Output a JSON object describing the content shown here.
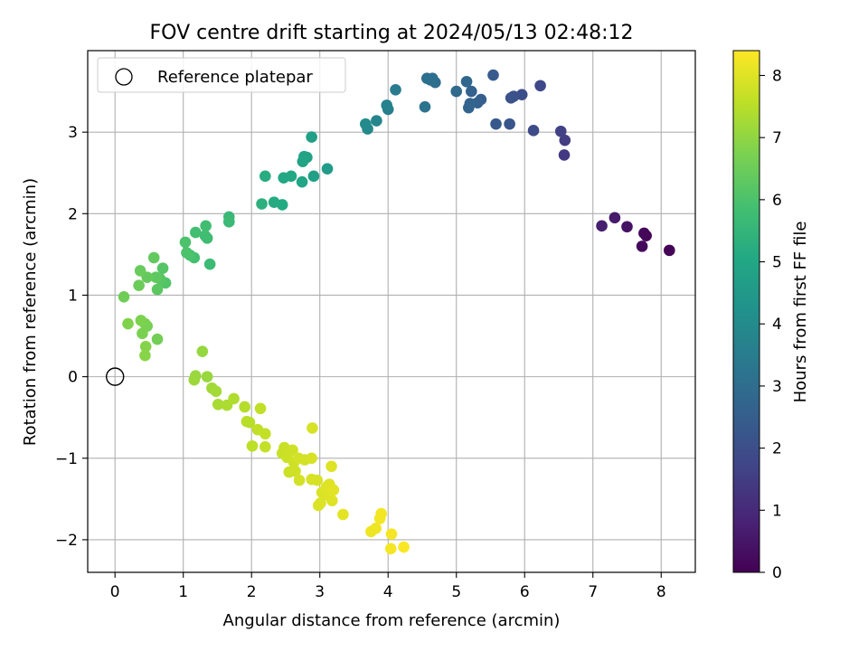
{
  "chart_data": {
    "type": "scatter",
    "title": "FOV centre drift starting at 2024/05/13 02:48:12",
    "xlabel": "Angular distance from reference (arcmin)",
    "ylabel": "Rotation from reference (arcmin)",
    "xlim": [
      -0.4,
      8.5
    ],
    "ylim": [
      -2.4,
      4.0
    ],
    "xticks": [
      0,
      1,
      2,
      3,
      4,
      5,
      6,
      7,
      8
    ],
    "yticks": [
      -2,
      -1,
      0,
      1,
      2,
      3
    ],
    "xtick_labels": [
      "0",
      "1",
      "2",
      "3",
      "4",
      "5",
      "6",
      "7",
      "8"
    ],
    "ytick_labels": [
      "−2",
      "−1",
      "0",
      "1",
      "2",
      "3"
    ],
    "grid": true,
    "legend": {
      "placement": "top-left",
      "entries": [
        "Reference platepar"
      ]
    },
    "reference_point": {
      "x": 0,
      "y": 0
    },
    "colorbar": {
      "label": "Hours from first FF file",
      "colormap": "viridis",
      "range": [
        0,
        8.4
      ],
      "ticks": [
        0,
        1,
        2,
        3,
        4,
        5,
        6,
        7,
        8
      ],
      "tick_labels": [
        "0",
        "1",
        "2",
        "3",
        "4",
        "5",
        "6",
        "7",
        "8"
      ]
    },
    "colormap_stops": [
      "#440154",
      "#482475",
      "#414487",
      "#355f8d",
      "#2a788e",
      "#21918c",
      "#22a884",
      "#44bf70",
      "#7ad151",
      "#bddf26",
      "#fde725"
    ],
    "points": [
      {
        "x": 8.12,
        "y": 1.55,
        "t": 0.05
      },
      {
        "x": 7.78,
        "y": 1.73,
        "t": 0.1
      },
      {
        "x": 7.75,
        "y": 1.76,
        "t": 0.15
      },
      {
        "x": 7.72,
        "y": 1.6,
        "t": 0.2
      },
      {
        "x": 7.5,
        "y": 1.84,
        "t": 0.4
      },
      {
        "x": 7.32,
        "y": 1.95,
        "t": 0.6
      },
      {
        "x": 7.13,
        "y": 1.85,
        "t": 0.7
      },
      {
        "x": 6.58,
        "y": 2.72,
        "t": 1.4
      },
      {
        "x": 6.59,
        "y": 2.9,
        "t": 1.5
      },
      {
        "x": 6.53,
        "y": 3.01,
        "t": 1.6
      },
      {
        "x": 6.23,
        "y": 3.57,
        "t": 1.8
      },
      {
        "x": 6.13,
        "y": 3.02,
        "t": 1.9
      },
      {
        "x": 5.96,
        "y": 3.46,
        "t": 2.0
      },
      {
        "x": 5.84,
        "y": 3.44,
        "t": 2.1
      },
      {
        "x": 5.8,
        "y": 3.42,
        "t": 2.1
      },
      {
        "x": 5.78,
        "y": 3.1,
        "t": 2.2
      },
      {
        "x": 5.58,
        "y": 3.1,
        "t": 2.3
      },
      {
        "x": 5.54,
        "y": 3.7,
        "t": 2.4
      },
      {
        "x": 5.36,
        "y": 3.4,
        "t": 2.5
      },
      {
        "x": 5.31,
        "y": 3.36,
        "t": 2.6
      },
      {
        "x": 5.22,
        "y": 3.5,
        "t": 2.6
      },
      {
        "x": 5.2,
        "y": 3.35,
        "t": 2.7
      },
      {
        "x": 5.18,
        "y": 3.3,
        "t": 2.7
      },
      {
        "x": 5.15,
        "y": 3.62,
        "t": 2.8
      },
      {
        "x": 5.0,
        "y": 3.5,
        "t": 2.9
      },
      {
        "x": 4.69,
        "y": 3.61,
        "t": 3.0
      },
      {
        "x": 4.65,
        "y": 3.66,
        "t": 3.05
      },
      {
        "x": 4.62,
        "y": 3.64,
        "t": 3.1
      },
      {
        "x": 4.57,
        "y": 3.66,
        "t": 3.1
      },
      {
        "x": 4.54,
        "y": 3.31,
        "t": 3.2
      },
      {
        "x": 4.11,
        "y": 3.52,
        "t": 3.5
      },
      {
        "x": 4.0,
        "y": 3.28,
        "t": 3.6
      },
      {
        "x": 3.98,
        "y": 3.33,
        "t": 3.7
      },
      {
        "x": 3.83,
        "y": 3.14,
        "t": 3.8
      },
      {
        "x": 3.7,
        "y": 3.04,
        "t": 3.9
      },
      {
        "x": 3.67,
        "y": 3.1,
        "t": 4.0
      },
      {
        "x": 3.11,
        "y": 2.55,
        "t": 4.6
      },
      {
        "x": 2.91,
        "y": 2.46,
        "t": 4.7
      },
      {
        "x": 2.88,
        "y": 2.94,
        "t": 4.75
      },
      {
        "x": 2.81,
        "y": 2.69,
        "t": 4.8
      },
      {
        "x": 2.77,
        "y": 2.7,
        "t": 4.85
      },
      {
        "x": 2.75,
        "y": 2.64,
        "t": 4.9
      },
      {
        "x": 2.74,
        "y": 2.39,
        "t": 4.95
      },
      {
        "x": 2.58,
        "y": 2.46,
        "t": 5.0
      },
      {
        "x": 2.47,
        "y": 2.44,
        "t": 5.05
      },
      {
        "x": 2.45,
        "y": 2.11,
        "t": 5.1
      },
      {
        "x": 2.33,
        "y": 2.14,
        "t": 5.15
      },
      {
        "x": 2.2,
        "y": 2.46,
        "t": 5.2
      },
      {
        "x": 2.15,
        "y": 2.12,
        "t": 5.3
      },
      {
        "x": 1.67,
        "y": 1.96,
        "t": 5.6
      },
      {
        "x": 1.67,
        "y": 1.9,
        "t": 5.65
      },
      {
        "x": 1.39,
        "y": 1.38,
        "t": 5.7
      },
      {
        "x": 1.35,
        "y": 1.7,
        "t": 5.75
      },
      {
        "x": 1.33,
        "y": 1.85,
        "t": 5.8
      },
      {
        "x": 1.32,
        "y": 1.73,
        "t": 5.8
      },
      {
        "x": 1.18,
        "y": 1.77,
        "t": 5.85
      },
      {
        "x": 1.16,
        "y": 1.46,
        "t": 5.9
      },
      {
        "x": 1.1,
        "y": 1.49,
        "t": 5.95
      },
      {
        "x": 1.05,
        "y": 1.52,
        "t": 6.0
      },
      {
        "x": 1.03,
        "y": 1.65,
        "t": 6.0
      },
      {
        "x": 0.74,
        "y": 1.15,
        "t": 6.1
      },
      {
        "x": 0.7,
        "y": 1.33,
        "t": 6.15
      },
      {
        "x": 0.66,
        "y": 1.2,
        "t": 6.2
      },
      {
        "x": 0.62,
        "y": 1.07,
        "t": 6.25
      },
      {
        "x": 0.6,
        "y": 1.22,
        "t": 6.3
      },
      {
        "x": 0.57,
        "y": 1.46,
        "t": 6.35
      },
      {
        "x": 0.47,
        "y": 1.22,
        "t": 6.4
      },
      {
        "x": 0.37,
        "y": 1.3,
        "t": 6.45
      },
      {
        "x": 0.35,
        "y": 1.12,
        "t": 6.5
      },
      {
        "x": 0.13,
        "y": 0.98,
        "t": 6.55
      },
      {
        "x": 0.62,
        "y": 0.46,
        "t": 6.6
      },
      {
        "x": 0.47,
        "y": 0.62,
        "t": 6.65
      },
      {
        "x": 0.44,
        "y": 0.65,
        "t": 6.7
      },
      {
        "x": 0.4,
        "y": 0.53,
        "t": 6.7
      },
      {
        "x": 0.38,
        "y": 0.69,
        "t": 6.75
      },
      {
        "x": 0.19,
        "y": 0.65,
        "t": 6.8
      },
      {
        "x": 0.45,
        "y": 0.37,
        "t": 6.85
      },
      {
        "x": 0.44,
        "y": 0.26,
        "t": 6.9
      },
      {
        "x": 1.28,
        "y": 0.31,
        "t": 7.05
      },
      {
        "x": 1.35,
        "y": 0.0,
        "t": 7.1
      },
      {
        "x": 1.18,
        "y": 0.01,
        "t": 7.1
      },
      {
        "x": 1.16,
        "y": -0.04,
        "t": 7.15
      },
      {
        "x": 1.42,
        "y": -0.14,
        "t": 7.2
      },
      {
        "x": 1.48,
        "y": -0.18,
        "t": 7.25
      },
      {
        "x": 1.51,
        "y": -0.34,
        "t": 7.3
      },
      {
        "x": 1.64,
        "y": -0.35,
        "t": 7.35
      },
      {
        "x": 1.74,
        "y": -0.27,
        "t": 7.4
      },
      {
        "x": 1.9,
        "y": -0.37,
        "t": 7.45
      },
      {
        "x": 1.93,
        "y": -0.55,
        "t": 7.5
      },
      {
        "x": 1.97,
        "y": -0.56,
        "t": 7.5
      },
      {
        "x": 2.01,
        "y": -0.85,
        "t": 7.55
      },
      {
        "x": 2.09,
        "y": -0.65,
        "t": 7.6
      },
      {
        "x": 2.13,
        "y": -0.39,
        "t": 7.6
      },
      {
        "x": 2.2,
        "y": -0.7,
        "t": 7.65
      },
      {
        "x": 2.2,
        "y": -0.86,
        "t": 7.65
      },
      {
        "x": 2.45,
        "y": -0.94,
        "t": 7.7
      },
      {
        "x": 2.48,
        "y": -0.87,
        "t": 7.7
      },
      {
        "x": 2.52,
        "y": -0.99,
        "t": 7.75
      },
      {
        "x": 2.55,
        "y": -1.17,
        "t": 7.75
      },
      {
        "x": 2.6,
        "y": -0.9,
        "t": 7.8
      },
      {
        "x": 2.62,
        "y": -1.05,
        "t": 7.8
      },
      {
        "x": 2.64,
        "y": -1.16,
        "t": 7.8
      },
      {
        "x": 2.69,
        "y": -1.0,
        "t": 7.85
      },
      {
        "x": 2.7,
        "y": -1.27,
        "t": 7.85
      },
      {
        "x": 2.78,
        "y": -1.02,
        "t": 7.85
      },
      {
        "x": 2.88,
        "y": -1.0,
        "t": 7.9
      },
      {
        "x": 2.88,
        "y": -1.26,
        "t": 7.9
      },
      {
        "x": 2.89,
        "y": -0.63,
        "t": 7.9
      },
      {
        "x": 2.96,
        "y": -1.27,
        "t": 7.9
      },
      {
        "x": 2.98,
        "y": -1.58,
        "t": 7.95
      },
      {
        "x": 3.01,
        "y": -1.55,
        "t": 7.95
      },
      {
        "x": 3.03,
        "y": -1.42,
        "t": 7.95
      },
      {
        "x": 3.07,
        "y": -1.45,
        "t": 7.95
      },
      {
        "x": 3.1,
        "y": -1.35,
        "t": 8.0
      },
      {
        "x": 3.14,
        "y": -1.32,
        "t": 8.0
      },
      {
        "x": 3.17,
        "y": -1.1,
        "t": 8.0
      },
      {
        "x": 3.18,
        "y": -1.52,
        "t": 8.0
      },
      {
        "x": 3.2,
        "y": -1.39,
        "t": 8.05
      },
      {
        "x": 3.34,
        "y": -1.69,
        "t": 8.05
      },
      {
        "x": 3.75,
        "y": -1.9,
        "t": 8.2
      },
      {
        "x": 3.82,
        "y": -1.86,
        "t": 8.2
      },
      {
        "x": 3.88,
        "y": -1.74,
        "t": 8.25
      },
      {
        "x": 3.9,
        "y": -1.68,
        "t": 8.25
      },
      {
        "x": 4.04,
        "y": -2.11,
        "t": 8.3
      },
      {
        "x": 4.05,
        "y": -1.93,
        "t": 8.3
      },
      {
        "x": 4.23,
        "y": -2.09,
        "t": 8.35
      }
    ]
  }
}
